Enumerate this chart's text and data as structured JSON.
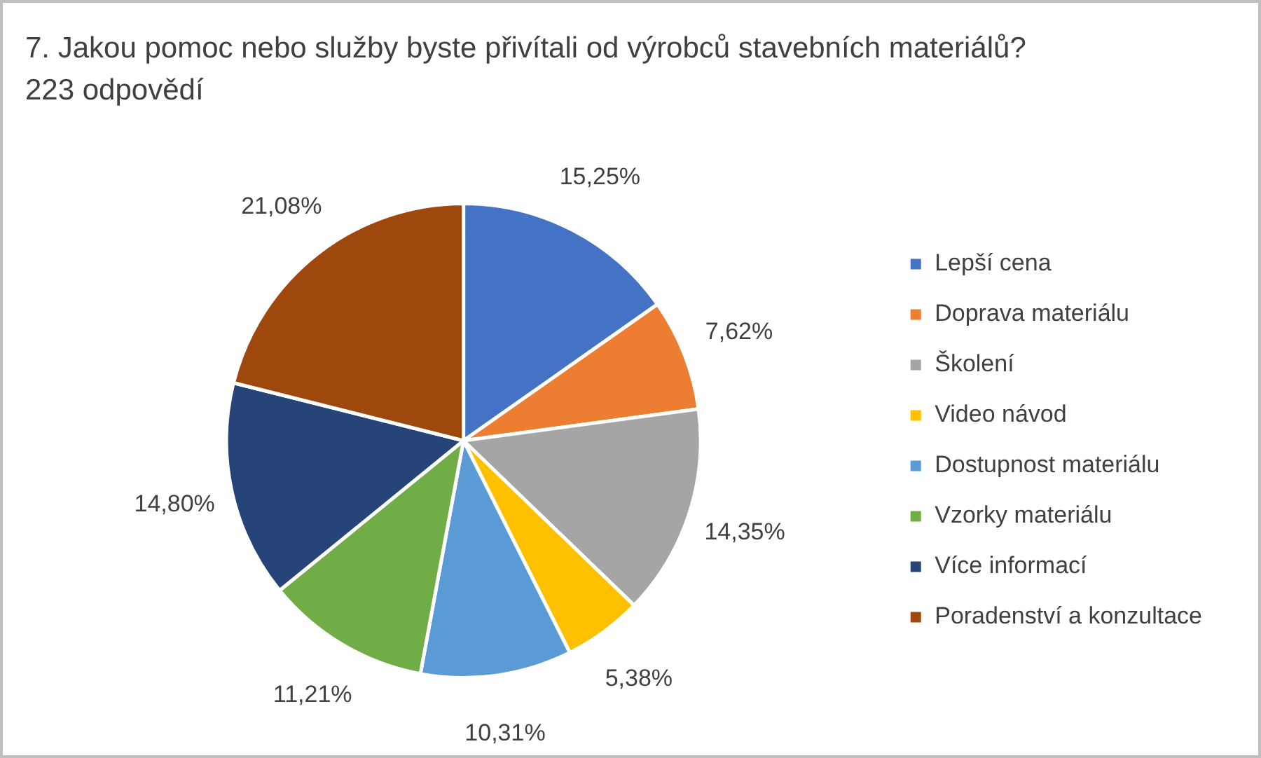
{
  "chart_data": {
    "type": "pie",
    "title": "7. Jakou pomoc nebo služby byste přivítali od výrobců stavebních materiálů? 223 odpovědí",
    "categories": [
      "Lepší cena",
      "Doprava materiálu",
      "Školení",
      "Video návod",
      "Dostupnost materiálu",
      "Vzorky materiálu",
      "Více informací",
      "Poradenství a konzultace"
    ],
    "values": [
      15.25,
      7.62,
      14.35,
      5.38,
      10.31,
      11.21,
      14.8,
      21.08
    ],
    "value_labels": [
      "15,25%",
      "7,62%",
      "14,35%",
      "5,38%",
      "10,31%",
      "11,21%",
      "14,80%",
      "21,08%"
    ],
    "colors": [
      "#4472c4",
      "#ed7d31",
      "#a5a5a5",
      "#ffc000",
      "#5b9bd5",
      "#70ad47",
      "#264478",
      "#9e480e"
    ],
    "legend": "right"
  }
}
